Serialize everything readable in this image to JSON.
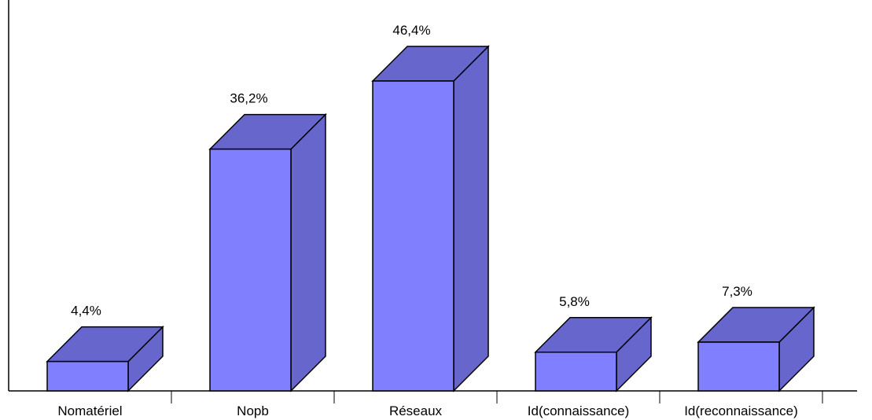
{
  "chart_data": {
    "type": "bar",
    "style": "3d",
    "categories": [
      "Nomatériel",
      "Nopb",
      "Réseaux",
      "Id(connaissance)",
      "Id(reconnaissance)"
    ],
    "values": [
      4.4,
      36.2,
      46.4,
      5.8,
      7.3
    ],
    "value_labels": [
      "4,4%",
      "36,2%",
      "46,4%",
      "5,8%",
      "7,3%"
    ],
    "title": "",
    "xlabel": "",
    "ylabel": "",
    "ylim": [
      0,
      46.4
    ],
    "grid": false,
    "legend": "none",
    "colors": {
      "front": "#8080ff",
      "top": "#6666cc",
      "side": "#6666cc",
      "outline": "#000000"
    }
  }
}
